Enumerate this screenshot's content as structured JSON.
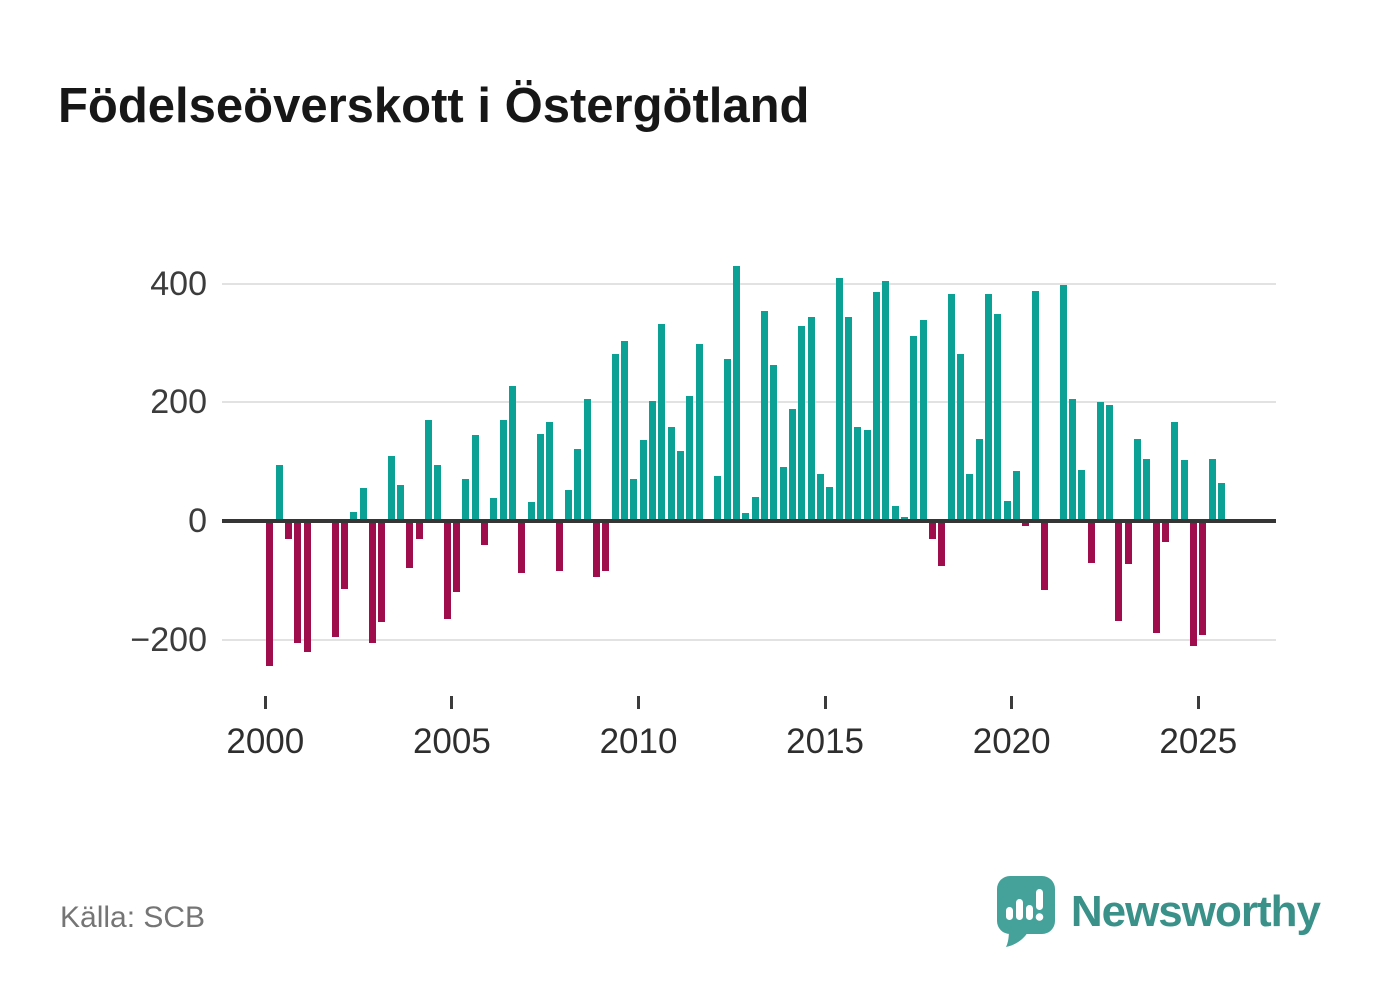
{
  "title": "Födelseöverskott i Östergötland",
  "source": "Källa: SCB",
  "branding": {
    "name": "Newsworthy",
    "icon": "newsworthy-speech-bubble-chart-icon"
  },
  "colors": {
    "positive_bar": "#0ba295",
    "negative_bar": "#a00d4d",
    "axis_line": "#353535",
    "gridline": "#e2e2e2",
    "brand_teal": "#45a29a",
    "brand_text": "#399189"
  },
  "chart_data": {
    "type": "bar",
    "title": "Födelseöverskott i Östergötland",
    "xlabel": "",
    "ylabel": "",
    "grid": "horizontal",
    "legend": "none",
    "ylim": [
      -270,
      445
    ],
    "y_ticks": {
      "labels": [
        "400",
        "200",
        "0",
        "−200"
      ],
      "values": [
        400,
        200,
        0,
        -200
      ]
    },
    "x_ticks": {
      "labels": [
        "2000",
        "2005",
        "2010",
        "2015",
        "2020",
        "2025"
      ],
      "years": [
        2000,
        2005,
        2010,
        2015,
        2020,
        2025
      ]
    },
    "x": [
      "2000Q1",
      "2000Q2",
      "2000Q3",
      "2000Q4",
      "2001Q1",
      "2001Q2",
      "2001Q3",
      "2001Q4",
      "2002Q1",
      "2002Q2",
      "2002Q3",
      "2002Q4",
      "2003Q1",
      "2003Q2",
      "2003Q3",
      "2003Q4",
      "2004Q1",
      "2004Q2",
      "2004Q3",
      "2004Q4",
      "2005Q1",
      "2005Q2",
      "2005Q3",
      "2005Q4",
      "2006Q1",
      "2006Q2",
      "2006Q3",
      "2006Q4",
      "2007Q1",
      "2007Q2",
      "2007Q3",
      "2007Q4",
      "2008Q1",
      "2008Q2",
      "2008Q3",
      "2008Q4",
      "2009Q1",
      "2009Q2",
      "2009Q3",
      "2009Q4",
      "2010Q1",
      "2010Q2",
      "2010Q3",
      "2010Q4",
      "2011Q1",
      "2011Q2",
      "2011Q3",
      "2011Q4",
      "2012Q1",
      "2012Q2",
      "2012Q3",
      "2012Q4",
      "2013Q1",
      "2013Q2",
      "2013Q3",
      "2013Q4",
      "2014Q1",
      "2014Q2",
      "2014Q3",
      "2014Q4",
      "2015Q1",
      "2015Q2",
      "2015Q3",
      "2015Q4",
      "2016Q1",
      "2016Q2",
      "2016Q3",
      "2016Q4",
      "2017Q1",
      "2017Q2",
      "2017Q3",
      "2017Q4",
      "2018Q1",
      "2018Q2",
      "2018Q3",
      "2018Q4",
      "2019Q1",
      "2019Q2",
      "2019Q3",
      "2019Q4",
      "2020Q1",
      "2020Q2",
      "2020Q3",
      "2020Q4",
      "2021Q1",
      "2021Q2",
      "2021Q3",
      "2021Q4",
      "2022Q1",
      "2022Q2",
      "2022Q3",
      "2022Q4",
      "2023Q1",
      "2023Q2",
      "2023Q3",
      "2023Q4",
      "2024Q1",
      "2024Q2",
      "2024Q3",
      "2024Q4",
      "2025Q1",
      "2025Q2",
      "2025Q3"
    ],
    "values": [
      -245,
      95,
      -30,
      -205,
      -220,
      0,
      0,
      -195,
      -115,
      15,
      55,
      -205,
      -170,
      110,
      60,
      -80,
      -30,
      170,
      95,
      -165,
      -120,
      70,
      145,
      -40,
      38,
      170,
      228,
      -87,
      32,
      147,
      167,
      -85,
      52,
      122,
      206,
      -95,
      -85,
      281,
      304,
      70,
      136,
      202,
      332,
      158,
      118,
      211,
      299,
      0,
      75,
      273,
      430,
      14,
      40,
      354,
      263,
      91,
      189,
      329,
      344,
      79,
      58,
      409,
      343,
      159,
      153,
      386,
      405,
      25,
      6,
      312,
      338,
      -30,
      -75,
      382,
      281,
      80,
      139,
      382,
      348,
      33,
      84,
      -8,
      387,
      -117,
      0,
      398,
      205,
      86,
      -71,
      201,
      195,
      -168,
      -72,
      138,
      105,
      -189,
      -35,
      166,
      103,
      -210,
      -192,
      105,
      64
    ]
  }
}
